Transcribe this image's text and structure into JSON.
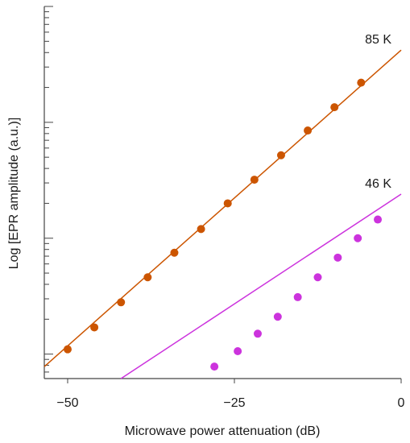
{
  "chart_data": {
    "type": "scatter",
    "xlabel": "Microwave power attenuation (dB)",
    "ylabel": "Log [EPR amplitude (a.u.)]",
    "xlim": [
      -53.5,
      0
    ],
    "xticks": [
      {
        "value": -50,
        "label": "−50"
      },
      {
        "value": -25,
        "label": "−25"
      },
      {
        "value": 0,
        "label": "0"
      }
    ],
    "ylog": true,
    "ylim": [
      0.0615,
      100
    ],
    "ymajor_ticks": [
      0.1,
      1,
      10
    ],
    "series": [
      {
        "name": "85 K",
        "color": "#cc5500",
        "marker": "circle",
        "points": [
          {
            "x": -50,
            "y": 0.11
          },
          {
            "x": -46,
            "y": 0.17
          },
          {
            "x": -42,
            "y": 0.28
          },
          {
            "x": -38,
            "y": 0.46
          },
          {
            "x": -34,
            "y": 0.75
          },
          {
            "x": -30,
            "y": 1.2
          },
          {
            "x": -26,
            "y": 2.0
          },
          {
            "x": -22,
            "y": 3.2
          },
          {
            "x": -18,
            "y": 5.2
          },
          {
            "x": -14,
            "y": 8.5
          },
          {
            "x": -10,
            "y": 13.5
          },
          {
            "x": -6,
            "y": 22
          }
        ],
        "fit": {
          "x": [
            -53.5,
            0
          ],
          "y": [
            0.078,
            42
          ]
        }
      },
      {
        "name": "46 K",
        "color": "#cc33dd",
        "marker": "circle",
        "points": [
          {
            "x": -28,
            "y": 0.078
          },
          {
            "x": -24.5,
            "y": 0.106
          },
          {
            "x": -21.5,
            "y": 0.15
          },
          {
            "x": -18.5,
            "y": 0.21
          },
          {
            "x": -15.5,
            "y": 0.31
          },
          {
            "x": -12.5,
            "y": 0.46
          },
          {
            "x": -9.5,
            "y": 0.68
          },
          {
            "x": -6.5,
            "y": 1.0
          },
          {
            "x": -3.5,
            "y": 1.45
          }
        ],
        "fit": {
          "x": [
            -42,
            0
          ],
          "y": [
            0.0615,
            2.4
          ]
        }
      }
    ]
  }
}
